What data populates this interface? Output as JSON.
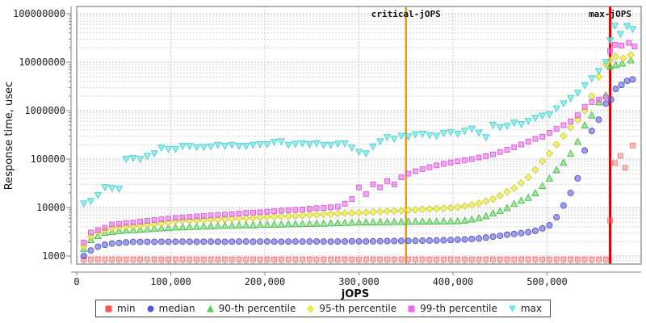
{
  "chart_data": {
    "type": "scatter",
    "title": "",
    "xlabel": "jOPS",
    "ylabel": "Response time, usec",
    "x_axis": {
      "min": 0,
      "max": 600000,
      "ticks": [
        {
          "v": 0,
          "label": "0"
        },
        {
          "v": 100000,
          "label": "100,000"
        },
        {
          "v": 200000,
          "label": "200,000"
        },
        {
          "v": 300000,
          "label": "300,000"
        },
        {
          "v": 400000,
          "label": "400,000"
        },
        {
          "v": 500000,
          "label": "500,000"
        }
      ]
    },
    "y_axis": {
      "scale": "log",
      "min": 680,
      "max": 140000000,
      "ticks": [
        {
          "v": 1000,
          "label": "1000"
        },
        {
          "v": 10000,
          "label": "10000"
        },
        {
          "v": 100000,
          "label": "100000"
        },
        {
          "v": 1000000,
          "label": "1000000"
        },
        {
          "v": 10000000,
          "label": "10000000"
        },
        {
          "v": 100000000,
          "label": "100000000"
        }
      ]
    },
    "grid": true,
    "legend_position": "bottom",
    "vlines": [
      {
        "label": "critical-jOPS",
        "jops": 350000,
        "color": "#E8A000",
        "width": 2.5
      },
      {
        "label": "max-jOPS",
        "jops": 567000,
        "color": "#DD0000",
        "width": 3
      }
    ],
    "x": [
      7500,
      15000,
      22500,
      30000,
      37500,
      45000,
      52500,
      60000,
      67500,
      75000,
      82500,
      90000,
      97500,
      105000,
      112500,
      120000,
      127500,
      135000,
      142500,
      150000,
      157500,
      165000,
      172500,
      180000,
      187500,
      195000,
      202500,
      210000,
      217500,
      225000,
      232500,
      240000,
      247500,
      255000,
      262500,
      270000,
      277500,
      285000,
      292500,
      300000,
      307500,
      315000,
      322500,
      330000,
      337500,
      345000,
      352500,
      360000,
      367500,
      375000,
      382500,
      390000,
      397500,
      405000,
      412500,
      420000,
      427500,
      435000,
      442500,
      450000,
      457500,
      465000,
      472500,
      480000,
      487500,
      495000,
      502500,
      510000,
      517500,
      525000,
      532500,
      540000,
      547500,
      555000,
      562500
    ],
    "series": [
      {
        "name": "min",
        "shape": "square-stem",
        "fill": "rgba(255,110,110,0.45)",
        "stroke": "rgba(240,80,80,0.75)",
        "legend_color": "#ff5555",
        "y": [
          850,
          850,
          850,
          850,
          850,
          850,
          850,
          850,
          850,
          850,
          850,
          850,
          850,
          850,
          850,
          850,
          850,
          850,
          850,
          850,
          850,
          850,
          850,
          850,
          850,
          850,
          850,
          850,
          850,
          850,
          850,
          850,
          850,
          850,
          850,
          850,
          850,
          850,
          850,
          850,
          850,
          850,
          850,
          850,
          850,
          850,
          850,
          850,
          850,
          850,
          850,
          850,
          850,
          850,
          850,
          850,
          850,
          850,
          850,
          850,
          850,
          850,
          850,
          850,
          850,
          850,
          850,
          850,
          850,
          850,
          850,
          850,
          850,
          850,
          850
        ],
        "extra_x": [
          567000,
          572000,
          578000,
          583000,
          591000
        ],
        "extra_y": [
          5400,
          83000,
          117000,
          66000,
          190000
        ]
      },
      {
        "name": "median",
        "shape": "circle",
        "fill": "rgba(95,95,220,0.60)",
        "stroke": "#4a4ac0",
        "legend_color": "#5555dd",
        "y": [
          1000,
          1300,
          1550,
          1700,
          1800,
          1850,
          1900,
          1950,
          1950,
          1960,
          1950,
          1970,
          1960,
          1970,
          1980,
          1970,
          1960,
          1970,
          1980,
          1970,
          1960,
          1970,
          1980,
          1990,
          1970,
          1980,
          1990,
          1980,
          1970,
          1980,
          1990,
          1980,
          1990,
          2000,
          1990,
          1980,
          1990,
          2000,
          2010,
          2000,
          2000,
          2010,
          2020,
          2030,
          2040,
          2050,
          2050,
          2060,
          2070,
          2080,
          2090,
          2110,
          2130,
          2160,
          2200,
          2250,
          2300,
          2400,
          2500,
          2600,
          2750,
          2850,
          2950,
          3100,
          3300,
          3700,
          4300,
          6300,
          11000,
          20000,
          40000,
          150000,
          380000,
          650000,
          1400000
        ],
        "extra_x": [
          568000,
          573000,
          579000,
          585000,
          591000
        ],
        "extra_y": [
          1700000,
          2800000,
          3400000,
          4100000,
          4400000
        ]
      },
      {
        "name": "90-th percentile",
        "shape": "triangle-up",
        "fill": "rgba(100,220,100,0.60)",
        "stroke": "#3cb43c",
        "legend_color": "#55cc55",
        "y": [
          1400,
          2150,
          2600,
          3050,
          3170,
          3300,
          3400,
          3450,
          3500,
          3600,
          3700,
          3750,
          3800,
          3900,
          3950,
          4000,
          4050,
          4100,
          4150,
          4200,
          4250,
          4250,
          4300,
          4350,
          4350,
          4400,
          4450,
          4500,
          4500,
          4550,
          4550,
          4600,
          4650,
          4700,
          4700,
          4750,
          4800,
          4850,
          4900,
          4950,
          5000,
          5000,
          5050,
          5050,
          5100,
          5100,
          5150,
          5150,
          5200,
          5200,
          5200,
          5250,
          5250,
          5300,
          5450,
          5700,
          6100,
          6700,
          7600,
          8500,
          9800,
          12000,
          14000,
          16000,
          20000,
          28000,
          40000,
          60000,
          85000,
          130000,
          230000,
          500000,
          800000,
          1500000,
          2100000
        ],
        "extra_x": [
          567000,
          573000,
          580000,
          589000
        ],
        "extra_y": [
          8200000,
          8800000,
          9500000,
          11000000
        ]
      },
      {
        "name": "95-th percentile",
        "shape": "diamond",
        "fill": "rgba(238,238,80,0.80)",
        "stroke": "#c8c832",
        "legend_color": "#e8e850",
        "y": [
          1600,
          2500,
          3050,
          3420,
          3700,
          3900,
          4000,
          4100,
          4200,
          4400,
          4500,
          4700,
          4900,
          5300,
          5350,
          5400,
          5500,
          5550,
          5650,
          5700,
          5800,
          5850,
          5950,
          6000,
          6100,
          6200,
          6400,
          6450,
          6550,
          6650,
          6750,
          6850,
          7000,
          7100,
          7250,
          7350,
          7500,
          7600,
          7700,
          7800,
          7900,
          8100,
          8200,
          8400,
          8500,
          8600,
          8800,
          9000,
          9200,
          9300,
          9500,
          9700,
          9900,
          10200,
          10700,
          11300,
          12200,
          13500,
          15000,
          17500,
          21000,
          25000,
          32000,
          42000,
          60000,
          90000,
          130000,
          200000,
          300000,
          450000,
          650000,
          1000000,
          2000000,
          5000000,
          9000000
        ],
        "extra_x": [
          567000,
          573000,
          581000,
          589000
        ],
        "extra_y": [
          11000000,
          13000000,
          12000000,
          14000000
        ]
      },
      {
        "name": "99-th percentile",
        "shape": "square",
        "fill": "rgba(245,105,245,0.60)",
        "stroke": "#d050d0",
        "legend_color": "#ee66ee",
        "y": [
          1900,
          3050,
          3420,
          3830,
          4470,
          4600,
          4800,
          4900,
          5100,
          5300,
          5500,
          5700,
          5900,
          6100,
          6250,
          6400,
          6550,
          6700,
          6850,
          7000,
          7150,
          7300,
          7500,
          7700,
          7850,
          8000,
          8200,
          8400,
          8600,
          8800,
          9000,
          9100,
          9400,
          9700,
          9800,
          10100,
          10400,
          12000,
          15000,
          26000,
          19000,
          30000,
          26000,
          35000,
          30000,
          42000,
          50000,
          56000,
          62000,
          68000,
          74000,
          80000,
          85000,
          90000,
          95000,
          100000,
          108000,
          115000,
          125000,
          140000,
          155000,
          175000,
          200000,
          230000,
          260000,
          290000,
          350000,
          420000,
          500000,
          600000,
          800000,
          1200000,
          1500000,
          1700000,
          1900000
        ],
        "extra_x": [
          567000,
          572000,
          579000,
          587000,
          593000
        ],
        "extra_y": [
          17000000,
          23000000,
          22000000,
          25000000,
          21000000
        ]
      },
      {
        "name": "max",
        "shape": "triangle-down",
        "fill": "rgba(110,238,238,0.75)",
        "stroke": "#48c8c8",
        "legend_color": "#66e8e8",
        "y": [
          12000,
          13500,
          18000,
          26000,
          25000,
          24000,
          100000,
          105000,
          100000,
          115000,
          130000,
          170000,
          160000,
          160000,
          185000,
          185000,
          175000,
          175000,
          180000,
          195000,
          185000,
          195000,
          185000,
          185000,
          195000,
          200000,
          200000,
          225000,
          230000,
          195000,
          205000,
          210000,
          200000,
          210000,
          195000,
          195000,
          205000,
          210000,
          170000,
          140000,
          130000,
          180000,
          230000,
          280000,
          260000,
          300000,
          290000,
          320000,
          330000,
          310000,
          300000,
          340000,
          360000,
          330000,
          380000,
          420000,
          350000,
          280000,
          500000,
          450000,
          480000,
          560000,
          520000,
          610000,
          700000,
          780000,
          830000,
          1100000,
          1400000,
          1800000,
          2300000,
          3300000,
          4600000,
          6500000,
          10000000
        ],
        "extra_x": [
          567000,
          572000,
          578000,
          585000,
          591000
        ],
        "extra_y": [
          28000000,
          56000000,
          38000000,
          55000000,
          48000000
        ]
      }
    ],
    "legend": [
      {
        "label": "min"
      },
      {
        "label": "median"
      },
      {
        "label": "90-th percentile"
      },
      {
        "label": "95-th percentile"
      },
      {
        "label": "99-th percentile"
      },
      {
        "label": "max"
      }
    ]
  }
}
